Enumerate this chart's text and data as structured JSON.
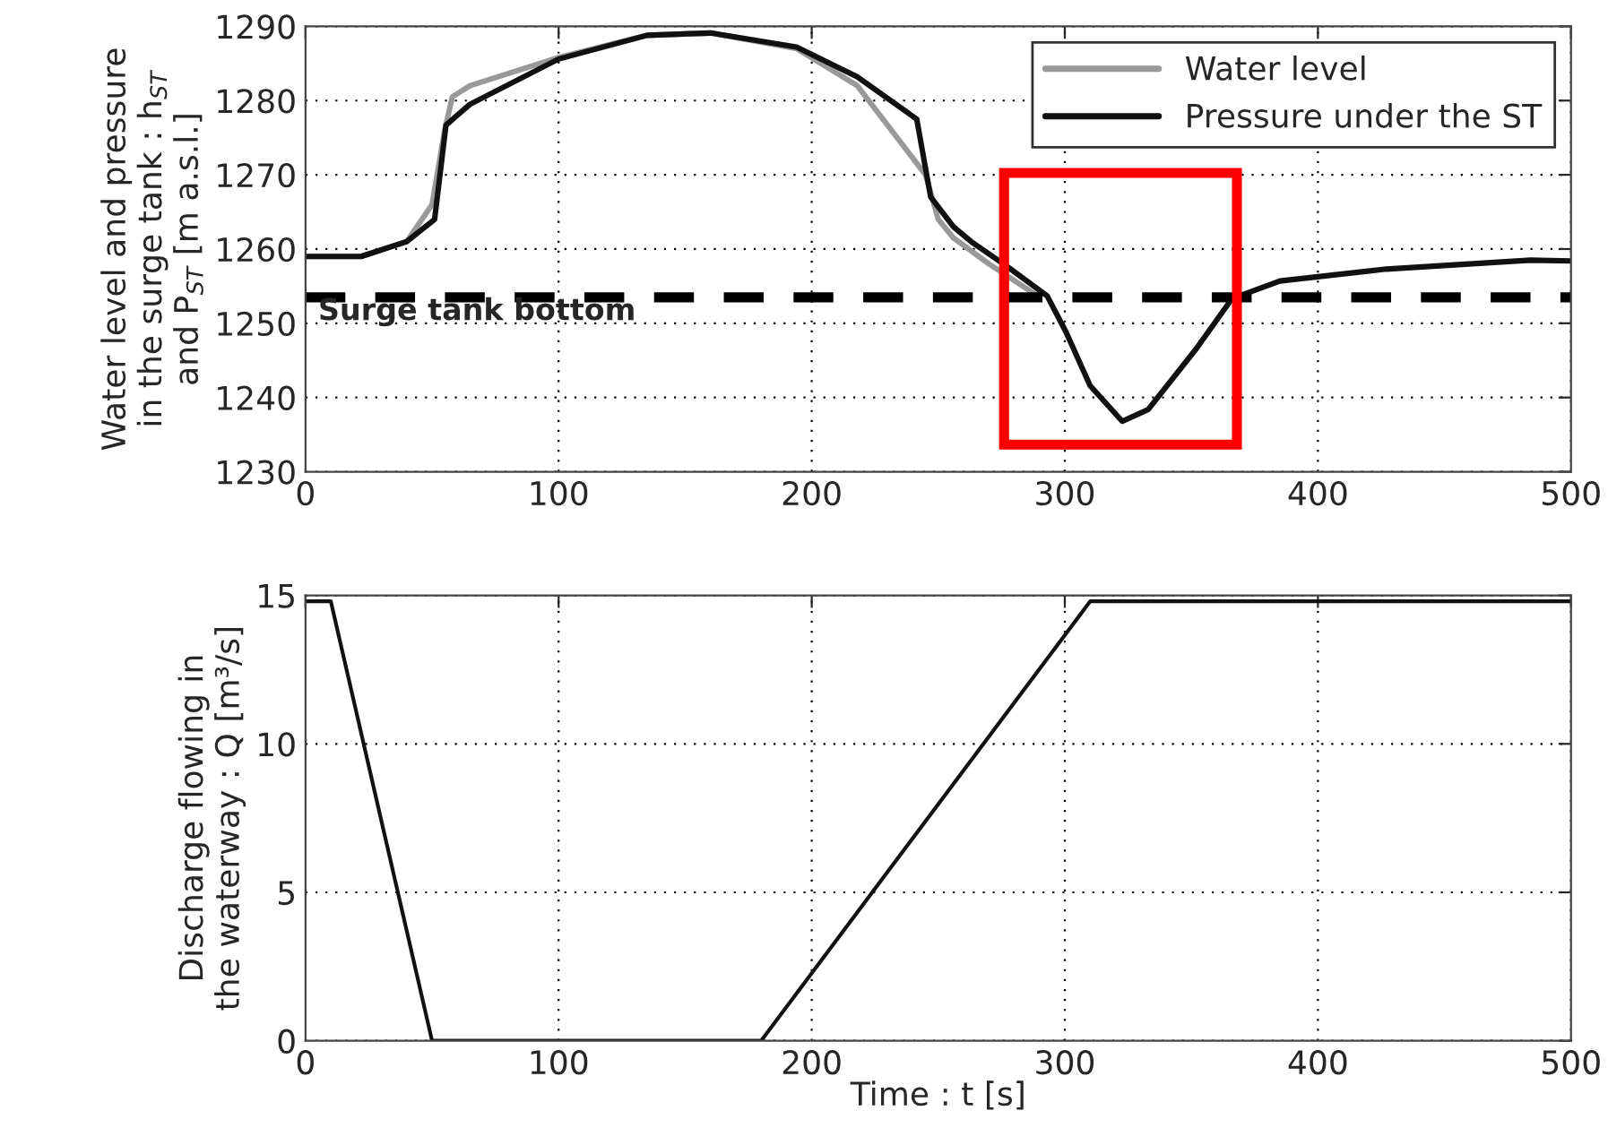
{
  "chart_data": [
    {
      "type": "line",
      "ylabel": "Water level and pressure\nin the surge tank : h$_{ST}$\nand P$_{ST}$ [m a.s.l.]",
      "series": [
        {
          "name": "Water level",
          "color": "#999999",
          "x": [
            0,
            22,
            40,
            50,
            55,
            58,
            65,
            100,
            135,
            160,
            194,
            218,
            245,
            250,
            256,
            270,
            290
          ],
          "values": [
            1259,
            1259,
            1261,
            1266,
            1276,
            1280.5,
            1282,
            1285.8,
            1288.8,
            1289.1,
            1287,
            1282,
            1270,
            1264,
            1261.5,
            1258,
            1253.5
          ]
        },
        {
          "name": "Pressure under the ST",
          "color": "#111111",
          "x": [
            0,
            22,
            40,
            51,
            55.5,
            65,
            100,
            135,
            160,
            194,
            218,
            241.5,
            247,
            256,
            263,
            277,
            293,
            300.5,
            310,
            322.7,
            333,
            352,
            366,
            385,
            427,
            484,
            500
          ],
          "values": [
            1259,
            1259,
            1261,
            1264,
            1276.7,
            1279.5,
            1285.6,
            1288.8,
            1289.1,
            1287.2,
            1283.2,
            1277.5,
            1267,
            1263,
            1261,
            1257.7,
            1253.7,
            1248.8,
            1241.6,
            1236.8,
            1238.4,
            1246.6,
            1253.3,
            1255.7,
            1257.3,
            1258.5,
            1258.4
          ]
        }
      ],
      "ref_lines": [
        {
          "axis": "y",
          "value": 1253.5,
          "label": "Surge tank bottom",
          "color": "#000000",
          "line_style": "dashed"
        }
      ],
      "xlim": [
        0,
        500
      ],
      "xticks": [
        0,
        100,
        200,
        300,
        400,
        500
      ],
      "ylim": [
        1230,
        1290
      ],
      "yticks": [
        1230,
        1240,
        1250,
        1260,
        1270,
        1280,
        1290
      ],
      "grid": true,
      "legend": "top right"
    },
    {
      "type": "line",
      "xlabel": "Time : t [s]",
      "ylabel": "Discharge flowing in\nthe waterway : Q [m³/s]",
      "series": [
        {
          "color": "#111111",
          "x": [
            0,
            10,
            50,
            180,
            310,
            500
          ],
          "values": [
            14.8,
            14.8,
            0,
            0,
            14.8,
            14.8
          ]
        }
      ],
      "xlim": [
        0,
        500
      ],
      "xticks": [
        0,
        100,
        200,
        300,
        400,
        500
      ],
      "ylim": [
        0,
        15
      ],
      "yticks": [
        0,
        5,
        10,
        15
      ],
      "grid": true
    }
  ]
}
